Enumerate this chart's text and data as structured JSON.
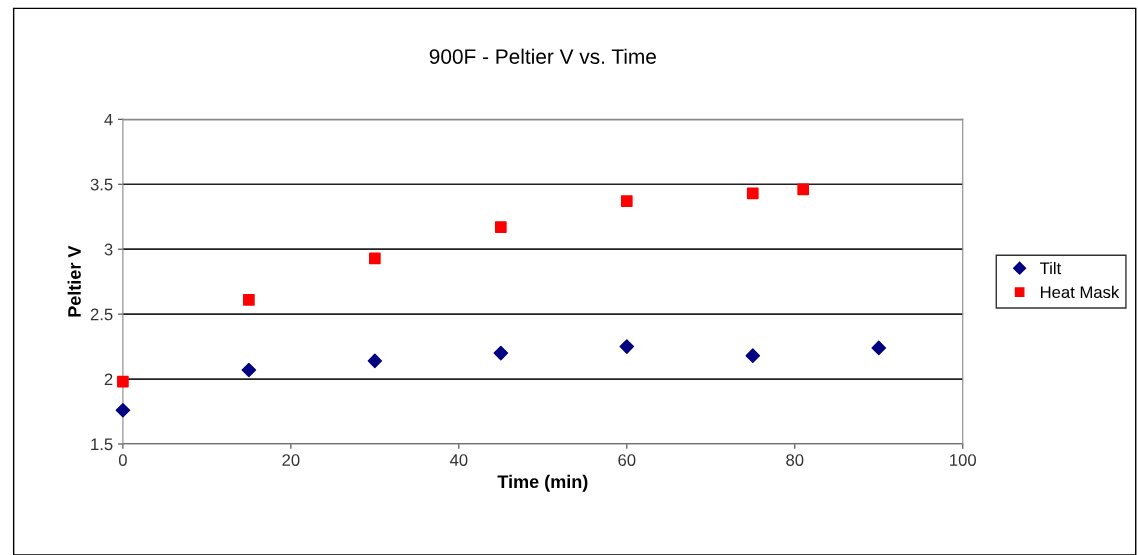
{
  "chart_data": {
    "type": "scatter",
    "title": "900F - Peltier V vs. Time",
    "xlabel": "Time (min)",
    "ylabel": "Peltier V",
    "series": [
      {
        "name": "Tilt",
        "color": "#000080",
        "marker": "diamond",
        "x": [
          0,
          15,
          30,
          45,
          60,
          75,
          90
        ],
        "values": [
          1.76,
          2.07,
          2.14,
          2.2,
          2.25,
          2.18,
          2.24
        ]
      },
      {
        "name": "Heat Mask",
        "color": "#ff0000",
        "marker": "square",
        "x": [
          0,
          15,
          30,
          45,
          60,
          75,
          81
        ],
        "values": [
          1.98,
          2.61,
          2.93,
          3.17,
          3.37,
          3.43,
          3.46
        ]
      }
    ],
    "xlim": [
      0,
      100
    ],
    "xticks": [
      0,
      20,
      40,
      60,
      80,
      100
    ],
    "ylim": [
      1.5,
      4
    ],
    "yticks": [
      1.5,
      2,
      2.5,
      3,
      3.5,
      4
    ],
    "grid": "y",
    "legend": "right"
  }
}
